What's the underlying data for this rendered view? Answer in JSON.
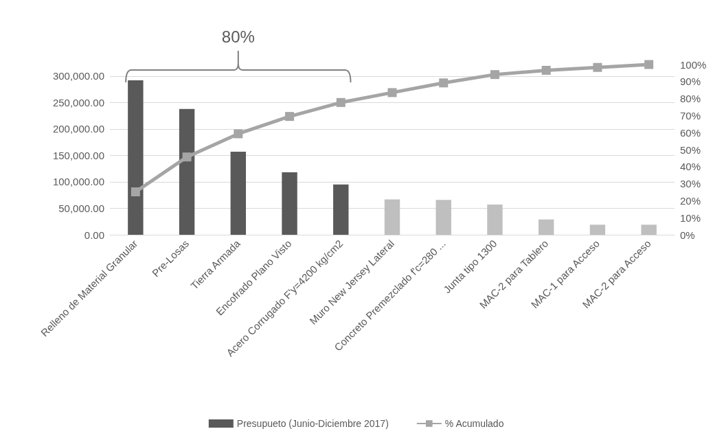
{
  "chart_data": {
    "type": "bar",
    "categories": [
      "Relleno de Material Granular",
      "Pre-Losas",
      "Tierra Armada",
      "Encofrado Plano Visto",
      "Acero Corrugado F'y=4200 kg/cm2",
      "Muro New Jersey Lateral",
      "Concreto Premezclado f'c=280 ...",
      "Junta tipo 1300",
      "MAC-2 para Tablero",
      "MAC-1 para Acceso",
      "MAC-2 para Acceso"
    ],
    "series": [
      {
        "name": "Presupueto (Junio-Diciembre 2017)",
        "color": "#595959",
        "colors": [
          "#595959",
          "#595959",
          "#595959",
          "#595959",
          "#595959",
          "#bfbfbf",
          "#bfbfbf",
          "#bfbfbf",
          "#bfbfbf",
          "#bfbfbf",
          "#bfbfbf"
        ],
        "values": [
          292000,
          238000,
          157000,
          118000,
          95000,
          67000,
          66000,
          57000,
          29000,
          19000,
          19000
        ]
      },
      {
        "name": "% Acumulado",
        "type": "line",
        "axis": "y2",
        "color": "#a5a5a5",
        "marker": "square",
        "values": [
          25.2,
          45.7,
          59.3,
          69.5,
          77.7,
          83.5,
          89.2,
          94.1,
          96.6,
          98.3,
          100
        ]
      }
    ],
    "ylim": [
      0,
      322000
    ],
    "yticks": [
      {
        "value": 0,
        "label": "0.00"
      },
      {
        "value": 50000,
        "label": "50,000.00"
      },
      {
        "value": 100000,
        "label": "100,000.00"
      },
      {
        "value": 150000,
        "label": "150,000.00"
      },
      {
        "value": 200000,
        "label": "200,000.00"
      },
      {
        "value": 250000,
        "label": "250,000.00"
      },
      {
        "value": 300000,
        "label": "300,000.00"
      }
    ],
    "y2lim": [
      0,
      100
    ],
    "y2ticks": [
      {
        "value": 0,
        "label": "0%"
      },
      {
        "value": 10,
        "label": "10%"
      },
      {
        "value": 20,
        "label": "20%"
      },
      {
        "value": 30,
        "label": "30%"
      },
      {
        "value": 40,
        "label": "40%"
      },
      {
        "value": 50,
        "label": "50%"
      },
      {
        "value": 60,
        "label": "60%"
      },
      {
        "value": 70,
        "label": "70%"
      },
      {
        "value": 80,
        "label": "80%"
      },
      {
        "value": 90,
        "label": "90%"
      },
      {
        "value": 100,
        "label": "100%"
      }
    ],
    "annotations": [
      "80%"
    ],
    "grid": "y",
    "legend": "bottom"
  }
}
